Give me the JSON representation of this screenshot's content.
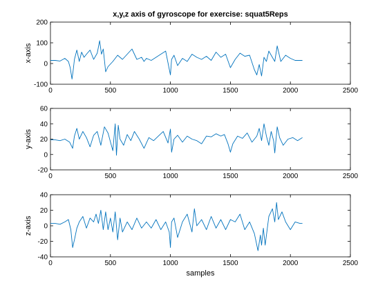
{
  "title": "x,y,z axis of gyroscope for exercise: squat5Reps",
  "chart_data": [
    {
      "type": "line",
      "title": "x,y,z axis of gyroscope for exercise: squat5Reps",
      "xlabel": "",
      "ylabel": "x-axis",
      "xlim": [
        0,
        2500
      ],
      "ylim": [
        -100,
        200
      ],
      "xticks": [
        "0",
        "500",
        "1000",
        "1500",
        "2000",
        "2500"
      ],
      "yticks": [
        "-100",
        "0",
        "100",
        "200"
      ],
      "color": "#0072bd",
      "grid": false,
      "series": [
        {
          "x": [
            0,
            40,
            80,
            120,
            150,
            165,
            180,
            190,
            200,
            220,
            240,
            260,
            280,
            300,
            330,
            360,
            390,
            410,
            425,
            440,
            460,
            480,
            520,
            560,
            600,
            640,
            680,
            720,
            760,
            780,
            800,
            840,
            880,
            920,
            960,
            1000,
            1010,
            1030,
            1060,
            1100,
            1140,
            1180,
            1220,
            1260,
            1300,
            1340,
            1380,
            1420,
            1460,
            1500,
            1540,
            1580,
            1620,
            1660,
            1700,
            1720,
            1740,
            1760,
            1780,
            1800,
            1820,
            1840,
            1870,
            1890,
            1920,
            1960,
            2000,
            2040,
            2100
          ],
          "y": [
            15,
            15,
            12,
            25,
            10,
            -20,
            -75,
            -30,
            20,
            65,
            10,
            55,
            30,
            45,
            65,
            20,
            50,
            110,
            45,
            70,
            -40,
            -15,
            10,
            40,
            20,
            45,
            70,
            20,
            30,
            10,
            25,
            15,
            30,
            45,
            60,
            -55,
            20,
            40,
            -10,
            25,
            10,
            45,
            30,
            20,
            35,
            15,
            55,
            30,
            45,
            -20,
            20,
            50,
            35,
            40,
            -30,
            -55,
            -5,
            -60,
            30,
            10,
            60,
            40,
            10,
            85,
            10,
            40,
            25,
            15,
            15
          ]
        }
      ]
    },
    {
      "type": "line",
      "title": "",
      "xlabel": "",
      "ylabel": "y-axis",
      "xlim": [
        0,
        2500
      ],
      "ylim": [
        -20,
        60
      ],
      "xticks": [
        "0",
        "500",
        "1000",
        "1500",
        "2000",
        "2500"
      ],
      "yticks": [
        "-20",
        "0",
        "20",
        "40",
        "60"
      ],
      "color": "#0072bd",
      "grid": false,
      "series": [
        {
          "x": [
            0,
            40,
            80,
            120,
            160,
            185,
            200,
            220,
            240,
            270,
            300,
            330,
            360,
            390,
            420,
            450,
            480,
            520,
            540,
            550,
            565,
            580,
            610,
            640,
            670,
            700,
            740,
            780,
            820,
            860,
            900,
            940,
            980,
            1000,
            1010,
            1030,
            1060,
            1100,
            1140,
            1180,
            1220,
            1260,
            1300,
            1340,
            1380,
            1420,
            1450,
            1480,
            1500,
            1520,
            1560,
            1600,
            1640,
            1680,
            1720,
            1740,
            1760,
            1780,
            1800,
            1820,
            1840,
            1860,
            1870,
            1890,
            1910,
            1940,
            1980,
            2020,
            2060,
            2100
          ],
          "y": [
            19,
            19,
            18,
            20,
            16,
            8,
            24,
            34,
            20,
            30,
            22,
            10,
            25,
            30,
            12,
            36,
            28,
            5,
            40,
            -1,
            38,
            20,
            12,
            26,
            18,
            30,
            20,
            8,
            22,
            18,
            24,
            30,
            15,
            33,
            3,
            20,
            25,
            16,
            24,
            20,
            18,
            14,
            24,
            23,
            27,
            24,
            26,
            14,
            3,
            14,
            24,
            21,
            28,
            16,
            24,
            34,
            18,
            40,
            24,
            12,
            30,
            18,
            2,
            36,
            22,
            12,
            20,
            22,
            18,
            22
          ]
        }
      ]
    },
    {
      "type": "line",
      "title": "",
      "xlabel": "samples",
      "ylabel": "z-axis",
      "xlim": [
        0,
        2500
      ],
      "ylim": [
        -40,
        40
      ],
      "xticks": [
        "0",
        "500",
        "1000",
        "1500",
        "2000",
        "2500"
      ],
      "yticks": [
        "-40",
        "-20",
        "0",
        "20",
        "40"
      ],
      "color": "#0072bd",
      "grid": false,
      "series": [
        {
          "x": [
            0,
            40,
            80,
            120,
            150,
            170,
            185,
            200,
            220,
            240,
            270,
            300,
            330,
            360,
            380,
            400,
            420,
            440,
            460,
            480,
            500,
            520,
            540,
            560,
            580,
            600,
            640,
            680,
            720,
            760,
            800,
            840,
            880,
            920,
            960,
            990,
            1000,
            1010,
            1030,
            1060,
            1100,
            1140,
            1180,
            1200,
            1220,
            1260,
            1300,
            1340,
            1380,
            1420,
            1460,
            1500,
            1540,
            1580,
            1620,
            1660,
            1700,
            1730,
            1750,
            1760,
            1775,
            1790,
            1820,
            1850,
            1870,
            1885,
            1900,
            1930,
            1960,
            2000,
            2040,
            2080,
            2100
          ],
          "y": [
            3,
            3,
            2,
            5,
            8,
            -5,
            -28,
            -18,
            -3,
            5,
            12,
            -3,
            10,
            5,
            15,
            3,
            20,
            -5,
            18,
            -5,
            10,
            -8,
            18,
            -18,
            10,
            -8,
            5,
            -5,
            10,
            -3,
            5,
            -3,
            8,
            -5,
            5,
            -8,
            -28,
            5,
            10,
            -15,
            5,
            15,
            -8,
            22,
            0,
            8,
            -5,
            12,
            -3,
            8,
            -5,
            8,
            5,
            15,
            -5,
            5,
            -10,
            -32,
            -12,
            -25,
            -3,
            -25,
            12,
            22,
            5,
            30,
            8,
            18,
            5,
            -5,
            5,
            3,
            3
          ]
        }
      ]
    }
  ]
}
